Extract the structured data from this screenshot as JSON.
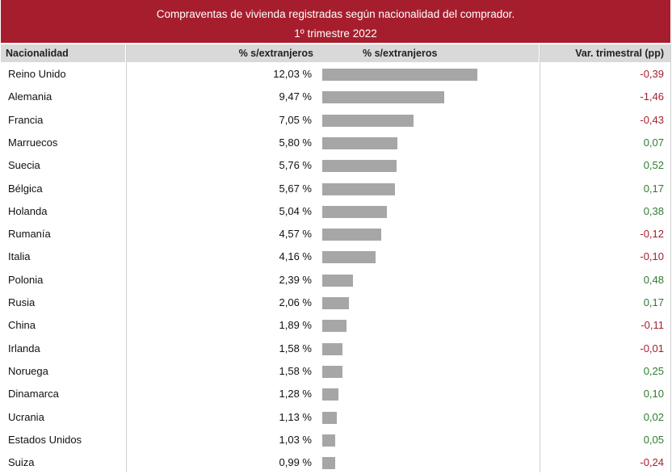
{
  "title": {
    "line1": "Compraventas de vivienda registradas según nacionalidad del comprador.",
    "line2": "1º trimestre 2022"
  },
  "colors": {
    "header_band": "#a61e2d",
    "bar": "#a6a6a6",
    "negative": "#a61e2d",
    "positive": "#2e7d32"
  },
  "columns": {
    "nacionalidad": "Nacionalidad",
    "pct": "% s/extranjeros",
    "bar": "% s/extranjeros",
    "var": "Var. trimestral (pp)"
  },
  "chart_data": {
    "type": "bar",
    "orientation": "horizontal",
    "categories": [
      "Reino Unido",
      "Alemania",
      "Francia",
      "Marruecos",
      "Suecia",
      "Bélgica",
      "Holanda",
      "Rumanía",
      "Italia",
      "Polonia",
      "Rusia",
      "China",
      "Irlanda",
      "Noruega",
      "Dinamarca",
      "Ucrania",
      "Estados Unidos",
      "Suiza"
    ],
    "values": [
      12.03,
      9.47,
      7.05,
      5.8,
      5.76,
      5.67,
      5.04,
      4.57,
      4.16,
      2.39,
      2.06,
      1.89,
      1.58,
      1.58,
      1.28,
      1.13,
      1.03,
      0.99
    ],
    "value_labels": [
      "12,03 %",
      "9,47 %",
      "7,05 %",
      "5,80 %",
      "5,76 %",
      "5,67 %",
      "5,04 %",
      "4,57 %",
      "4,16 %",
      "2,39 %",
      "2,06 %",
      "1,89 %",
      "1,58 %",
      "1,58 %",
      "1,28 %",
      "1,13 %",
      "1,03 %",
      "0,99 %"
    ],
    "var_trimestral": [
      -0.39,
      -1.46,
      -0.43,
      0.07,
      0.52,
      0.17,
      0.38,
      -0.12,
      -0.1,
      0.48,
      0.17,
      -0.11,
      -0.01,
      0.25,
      0.1,
      0.02,
      0.05,
      -0.24
    ],
    "var_labels": [
      "-0,39",
      "-1,46",
      "-0,43",
      "0,07",
      "0,52",
      "0,17",
      "0,38",
      "-0,12",
      "-0,10",
      "0,48",
      "0,17",
      "-0,11",
      "-0,01",
      "0,25",
      "0,10",
      "0,02",
      "0,05",
      "-0,24"
    ]
  }
}
